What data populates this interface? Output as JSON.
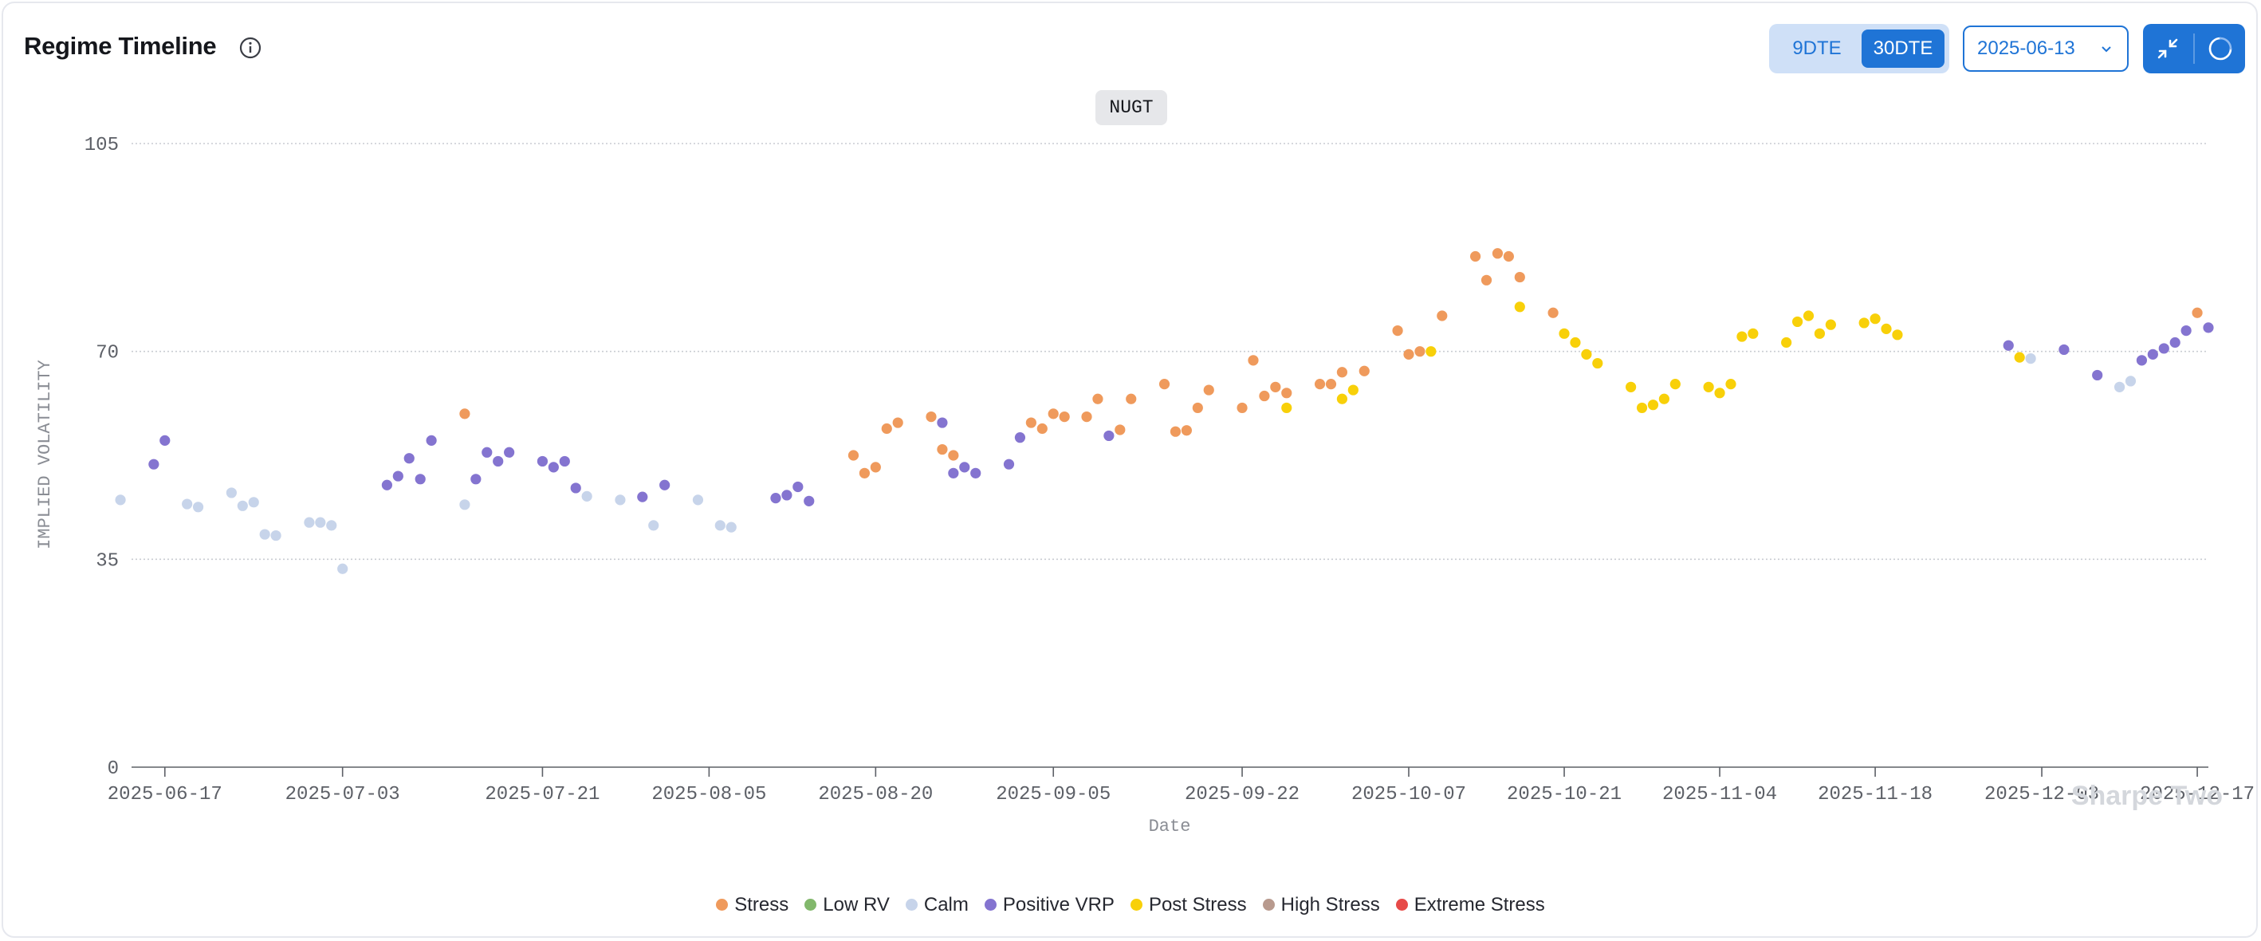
{
  "header": {
    "title": "Regime Timeline",
    "dte_options": [
      "9DTE",
      "30DTE"
    ],
    "selected_dte": "30DTE",
    "date_value": "2025-06-13",
    "icons": [
      "info-icon",
      "chevron-down-icon",
      "collapse-icon",
      "loading-spinner-icon"
    ]
  },
  "ticker": "NUGT",
  "watermark": "Sharpe Two",
  "colors": {
    "Stress": "#ef9a5c",
    "Low RV": "#82b86c",
    "Calm": "#c7d4ea",
    "Positive VRP": "#8474d0",
    "Post Stress": "#f8d009",
    "High Stress": "#b89a8e",
    "Extreme Stress": "#e74a48",
    "accent": "#1f74d6"
  },
  "legend": [
    "Stress",
    "Low RV",
    "Calm",
    "Positive VRP",
    "Post Stress",
    "High Stress",
    "Extreme Stress"
  ],
  "chart_data": {
    "type": "scatter",
    "xlabel": "Date",
    "ylabel": "IMPLIED VOLATILITY",
    "ylim": [
      0,
      105
    ],
    "yticks": [
      0,
      35,
      70,
      105
    ],
    "xlim": [
      "2025-06-14",
      "2025-12-18"
    ],
    "xticks": [
      "2025-06-17",
      "2025-07-03",
      "2025-07-21",
      "2025-08-05",
      "2025-08-20",
      "2025-09-05",
      "2025-09-22",
      "2025-10-07",
      "2025-10-21",
      "2025-11-04",
      "2025-11-18",
      "2025-12-03",
      "2025-12-17"
    ],
    "grid": "horizontal dotted",
    "legend_position": "bottom",
    "series": [
      {
        "name": "Calm",
        "points": [
          [
            "2025-06-13",
            45.0
          ],
          [
            "2025-06-19",
            44.3
          ],
          [
            "2025-06-20",
            43.8
          ],
          [
            "2025-06-23",
            46.2
          ],
          [
            "2025-06-24",
            44.0
          ],
          [
            "2025-06-25",
            44.6
          ],
          [
            "2025-06-26",
            39.2
          ],
          [
            "2025-06-27",
            39.0
          ],
          [
            "2025-06-30",
            41.2
          ],
          [
            "2025-07-01",
            41.2
          ],
          [
            "2025-07-02",
            40.7
          ],
          [
            "2025-07-03",
            33.4
          ],
          [
            "2025-07-14",
            44.2
          ],
          [
            "2025-07-25",
            45.6
          ],
          [
            "2025-07-28",
            45.0
          ],
          [
            "2025-07-31",
            40.7
          ],
          [
            "2025-08-04",
            45.0
          ],
          [
            "2025-08-06",
            40.7
          ],
          [
            "2025-08-07",
            40.4
          ],
          [
            "2025-12-02",
            68.8
          ],
          [
            "2025-12-10",
            64.0
          ],
          [
            "2025-12-11",
            65.0
          ]
        ]
      },
      {
        "name": "Positive VRP",
        "points": [
          [
            "2025-06-16",
            51.0
          ],
          [
            "2025-06-17",
            55.0
          ],
          [
            "2025-07-07",
            47.5
          ],
          [
            "2025-07-08",
            49.0
          ],
          [
            "2025-07-09",
            52.0
          ],
          [
            "2025-07-10",
            48.5
          ],
          [
            "2025-07-11",
            55.0
          ],
          [
            "2025-07-15",
            48.5
          ],
          [
            "2025-07-16",
            53.0
          ],
          [
            "2025-07-17",
            51.5
          ],
          [
            "2025-07-18",
            53.0
          ],
          [
            "2025-07-21",
            51.5
          ],
          [
            "2025-07-22",
            50.5
          ],
          [
            "2025-07-23",
            51.5
          ],
          [
            "2025-07-24",
            47.0
          ],
          [
            "2025-07-30",
            45.5
          ],
          [
            "2025-08-01",
            47.5
          ],
          [
            "2025-08-11",
            45.3
          ],
          [
            "2025-08-12",
            45.8
          ],
          [
            "2025-08-13",
            47.2
          ],
          [
            "2025-08-14",
            44.8
          ],
          [
            "2025-08-26",
            58.0
          ],
          [
            "2025-08-27",
            49.5
          ],
          [
            "2025-08-28",
            50.5
          ],
          [
            "2025-08-29",
            49.5
          ],
          [
            "2025-09-01",
            51.0
          ],
          [
            "2025-09-02",
            55.5
          ],
          [
            "2025-09-10",
            55.8
          ],
          [
            "2025-11-30",
            71.0
          ],
          [
            "2025-12-05",
            70.3
          ],
          [
            "2025-12-08",
            66.0
          ],
          [
            "2025-12-12",
            68.5
          ],
          [
            "2025-12-13",
            69.5
          ],
          [
            "2025-12-14",
            70.5
          ],
          [
            "2025-12-15",
            71.5
          ],
          [
            "2025-12-16",
            73.5
          ],
          [
            "2025-12-18",
            74.0
          ]
        ]
      },
      {
        "name": "Stress",
        "points": [
          [
            "2025-07-14",
            59.5
          ],
          [
            "2025-08-18",
            52.5
          ],
          [
            "2025-08-19",
            49.5
          ],
          [
            "2025-08-20",
            50.5
          ],
          [
            "2025-08-21",
            57.0
          ],
          [
            "2025-08-22",
            58.0
          ],
          [
            "2025-08-25",
            59.0
          ],
          [
            "2025-08-26",
            53.5
          ],
          [
            "2025-08-27",
            52.5
          ],
          [
            "2025-09-03",
            58.0
          ],
          [
            "2025-09-04",
            57.0
          ],
          [
            "2025-09-05",
            59.5
          ],
          [
            "2025-09-06",
            59.0
          ],
          [
            "2025-09-08",
            59.0
          ],
          [
            "2025-09-09",
            62.0
          ],
          [
            "2025-09-11",
            56.8
          ],
          [
            "2025-09-12",
            62.0
          ],
          [
            "2025-09-15",
            64.5
          ],
          [
            "2025-09-16",
            56.5
          ],
          [
            "2025-09-17",
            56.7
          ],
          [
            "2025-09-18",
            60.5
          ],
          [
            "2025-09-19",
            63.5
          ],
          [
            "2025-09-22",
            60.5
          ],
          [
            "2025-09-23",
            68.5
          ],
          [
            "2025-09-24",
            62.5
          ],
          [
            "2025-09-25",
            64.0
          ],
          [
            "2025-09-26",
            63.0
          ],
          [
            "2025-09-29",
            64.5
          ],
          [
            "2025-09-30",
            64.5
          ],
          [
            "2025-10-01",
            66.5
          ],
          [
            "2025-10-03",
            66.7
          ],
          [
            "2025-10-06",
            73.5
          ],
          [
            "2025-10-07",
            69.5
          ],
          [
            "2025-10-08",
            70.0
          ],
          [
            "2025-10-10",
            76.0
          ],
          [
            "2025-10-13",
            86.0
          ],
          [
            "2025-10-14",
            82.0
          ],
          [
            "2025-10-15",
            86.5
          ],
          [
            "2025-10-16",
            86.0
          ],
          [
            "2025-10-17",
            82.5
          ],
          [
            "2025-10-20",
            76.5
          ],
          [
            "2025-12-17",
            76.5
          ]
        ]
      },
      {
        "name": "Post Stress",
        "points": [
          [
            "2025-09-26",
            60.5
          ],
          [
            "2025-10-01",
            62.0
          ],
          [
            "2025-10-02",
            63.5
          ],
          [
            "2025-10-09",
            70.0
          ],
          [
            "2025-10-17",
            77.5
          ],
          [
            "2025-10-21",
            73.0
          ],
          [
            "2025-10-22",
            71.5
          ],
          [
            "2025-10-23",
            69.5
          ],
          [
            "2025-10-24",
            68.0
          ],
          [
            "2025-10-27",
            64.0
          ],
          [
            "2025-10-28",
            60.5
          ],
          [
            "2025-10-29",
            61.0
          ],
          [
            "2025-10-30",
            62.0
          ],
          [
            "2025-10-31",
            64.5
          ],
          [
            "2025-11-03",
            64.0
          ],
          [
            "2025-11-04",
            63.0
          ],
          [
            "2025-11-05",
            64.5
          ],
          [
            "2025-11-06",
            72.5
          ],
          [
            "2025-11-07",
            73.0
          ],
          [
            "2025-11-10",
            71.5
          ],
          [
            "2025-11-11",
            75.0
          ],
          [
            "2025-11-12",
            76.0
          ],
          [
            "2025-11-13",
            73.0
          ],
          [
            "2025-11-14",
            74.5
          ],
          [
            "2025-11-17",
            74.8
          ],
          [
            "2025-11-18",
            75.5
          ],
          [
            "2025-11-19",
            73.8
          ],
          [
            "2025-11-20",
            72.8
          ],
          [
            "2025-12-01",
            69.0
          ]
        ]
      }
    ]
  }
}
